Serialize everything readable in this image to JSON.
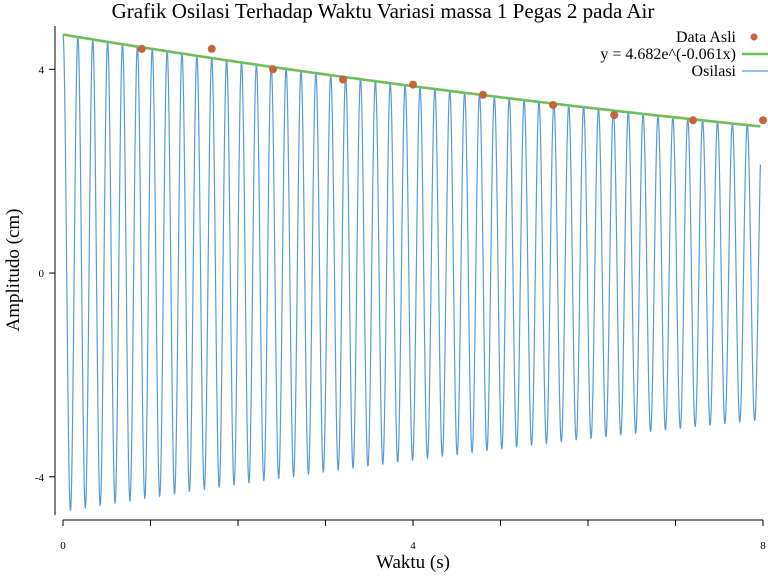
{
  "chart_data": {
    "type": "line",
    "title": "Grafik Osilasi Terhadap Waktu Variasi massa 1 Pegas 2 pada Air",
    "xlabel": "Waktu (s)",
    "ylabel": "Amplitudo (cm)",
    "xlim": [
      0,
      8
    ],
    "ylim": [
      -4.75,
      4.85
    ],
    "x_ticks": [
      "0",
      "4",
      "8"
    ],
    "y_ticks": [
      "4",
      "0",
      "-4"
    ],
    "x_tick_values": [
      0,
      4,
      8
    ],
    "y_tick_values": [
      4,
      0,
      -4
    ],
    "x_minor_ticks": [
      1,
      2,
      3,
      5,
      6,
      7
    ],
    "grid": false,
    "legend_position": "top-right",
    "series": [
      {
        "name": "Data Asli",
        "kind": "scatter",
        "color": "#c8643c",
        "x": [
          0.9,
          1.7,
          2.4,
          3.2,
          4.0,
          4.8,
          5.6,
          6.3,
          7.2,
          8.0
        ],
        "y": [
          4.4,
          4.4,
          4.0,
          3.8,
          3.7,
          3.5,
          3.3,
          3.1,
          3.0,
          3.0
        ]
      },
      {
        "name": "y = 4.682e^(-0.061x)",
        "kind": "fit",
        "color": "#6cbf5a",
        "equation": {
          "A": 4.682,
          "k": -0.061
        }
      },
      {
        "name": "Osilasi",
        "kind": "oscillation",
        "color": "#5b9bd5",
        "A": 4.682,
        "k": -0.061,
        "period": 0.17,
        "t_end": 7.97
      }
    ]
  }
}
